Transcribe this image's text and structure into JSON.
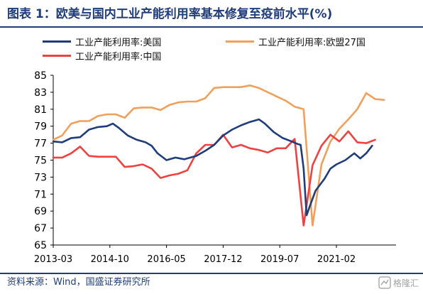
{
  "header": {
    "title": "图表 1：欧美与国内工业产能利用率基本修复至疫前水平(%)"
  },
  "footer": {
    "source": "资料来源：Wind，国盛证券研究所"
  },
  "watermark": {
    "text": "格隆汇"
  },
  "chart_data": {
    "type": "line",
    "ylim": [
      65,
      85
    ],
    "yticks": [
      65,
      67,
      69,
      71,
      73,
      75,
      77,
      79,
      81,
      83,
      85
    ],
    "xlim": [
      "2013-03",
      "2022-10"
    ],
    "xticks": [
      "2013-03",
      "2014-10",
      "2016-05",
      "2017-12",
      "2019-07",
      "2021-02"
    ],
    "grid": false,
    "legend_position": "top",
    "series": [
      {
        "name": "工业产能利用率:美国",
        "color": "#1f3d7a",
        "points": [
          [
            "2013-03",
            77.2
          ],
          [
            "2013-06",
            77.1
          ],
          [
            "2013-09",
            77.6
          ],
          [
            "2013-12",
            77.7
          ],
          [
            "2014-03",
            78.6
          ],
          [
            "2014-06",
            78.9
          ],
          [
            "2014-09",
            79.0
          ],
          [
            "2014-11",
            79.3
          ],
          [
            "2015-01",
            78.8
          ],
          [
            "2015-04",
            77.9
          ],
          [
            "2015-07",
            77.4
          ],
          [
            "2015-10",
            77.1
          ],
          [
            "2015-12",
            76.7
          ],
          [
            "2016-02",
            75.8
          ],
          [
            "2016-05",
            75.0
          ],
          [
            "2016-08",
            75.3
          ],
          [
            "2016-11",
            75.1
          ],
          [
            "2017-03",
            75.5
          ],
          [
            "2017-06",
            76.1
          ],
          [
            "2017-09",
            76.8
          ],
          [
            "2017-12",
            77.9
          ],
          [
            "2018-03",
            78.6
          ],
          [
            "2018-06",
            79.1
          ],
          [
            "2018-09",
            79.5
          ],
          [
            "2018-12",
            79.8
          ],
          [
            "2019-02",
            79.3
          ],
          [
            "2019-05",
            78.3
          ],
          [
            "2019-08",
            77.6
          ],
          [
            "2019-11",
            77.2
          ],
          [
            "2020-01",
            76.9
          ],
          [
            "2020-02",
            76.8
          ],
          [
            "2020-03",
            74.0
          ],
          [
            "2020-04",
            68.5
          ],
          [
            "2020-05",
            69.5
          ],
          [
            "2020-07",
            71.4
          ],
          [
            "2020-10",
            72.8
          ],
          [
            "2020-12",
            74.0
          ],
          [
            "2021-02",
            74.5
          ],
          [
            "2021-05",
            75.0
          ],
          [
            "2021-08",
            75.8
          ],
          [
            "2021-10",
            75.2
          ],
          [
            "2021-12",
            75.8
          ],
          [
            "2022-02",
            76.7
          ]
        ]
      },
      {
        "name": "工业产能利用率:欧盟27国",
        "color": "#f0a05a",
        "points": [
          [
            "2013-03",
            77.4
          ],
          [
            "2013-06",
            77.9
          ],
          [
            "2013-09",
            79.3
          ],
          [
            "2013-12",
            79.6
          ],
          [
            "2014-03",
            79.6
          ],
          [
            "2014-06",
            80.2
          ],
          [
            "2014-09",
            80.4
          ],
          [
            "2014-12",
            80.4
          ],
          [
            "2015-03",
            80.0
          ],
          [
            "2015-06",
            81.1
          ],
          [
            "2015-09",
            81.2
          ],
          [
            "2015-12",
            81.2
          ],
          [
            "2016-03",
            80.9
          ],
          [
            "2016-06",
            81.5
          ],
          [
            "2016-09",
            81.8
          ],
          [
            "2016-12",
            81.9
          ],
          [
            "2017-03",
            81.9
          ],
          [
            "2017-06",
            82.3
          ],
          [
            "2017-09",
            83.5
          ],
          [
            "2017-12",
            83.6
          ],
          [
            "2018-03",
            83.6
          ],
          [
            "2018-06",
            83.6
          ],
          [
            "2018-09",
            83.8
          ],
          [
            "2018-12",
            83.5
          ],
          [
            "2019-03",
            83.0
          ],
          [
            "2019-06",
            82.5
          ],
          [
            "2019-09",
            82.0
          ],
          [
            "2019-12",
            81.3
          ],
          [
            "2020-03",
            81.0
          ],
          [
            "2020-06",
            67.3
          ],
          [
            "2020-09",
            74.5
          ],
          [
            "2020-12",
            77.2
          ],
          [
            "2021-03",
            78.7
          ],
          [
            "2021-06",
            79.8
          ],
          [
            "2021-09",
            81.0
          ],
          [
            "2021-12",
            82.9
          ],
          [
            "2022-03",
            82.2
          ],
          [
            "2022-06",
            82.1
          ]
        ]
      },
      {
        "name": "工业产能利用率:中国",
        "color": "#f04040",
        "points": [
          [
            "2013-03",
            75.3
          ],
          [
            "2013-06",
            75.3
          ],
          [
            "2013-09",
            75.8
          ],
          [
            "2013-12",
            76.6
          ],
          [
            "2014-03",
            75.5
          ],
          [
            "2014-06",
            75.4
          ],
          [
            "2014-09",
            75.4
          ],
          [
            "2014-12",
            75.4
          ],
          [
            "2015-03",
            74.2
          ],
          [
            "2015-06",
            74.3
          ],
          [
            "2015-09",
            74.5
          ],
          [
            "2015-12",
            74.0
          ],
          [
            "2016-03",
            72.9
          ],
          [
            "2016-06",
            73.2
          ],
          [
            "2016-09",
            73.4
          ],
          [
            "2016-12",
            73.8
          ],
          [
            "2017-03",
            75.8
          ],
          [
            "2017-06",
            76.8
          ],
          [
            "2017-09",
            76.8
          ],
          [
            "2017-12",
            78.0
          ],
          [
            "2018-03",
            76.5
          ],
          [
            "2018-06",
            76.8
          ],
          [
            "2018-09",
            76.4
          ],
          [
            "2018-12",
            76.2
          ],
          [
            "2019-03",
            75.9
          ],
          [
            "2019-06",
            76.4
          ],
          [
            "2019-09",
            76.4
          ],
          [
            "2019-12",
            77.5
          ],
          [
            "2020-03",
            67.3
          ],
          [
            "2020-06",
            74.4
          ],
          [
            "2020-09",
            76.7
          ],
          [
            "2020-12",
            78.0
          ],
          [
            "2021-03",
            77.2
          ],
          [
            "2021-06",
            78.4
          ],
          [
            "2021-09",
            77.1
          ],
          [
            "2021-12",
            77.0
          ],
          [
            "2022-03",
            77.4
          ]
        ]
      }
    ]
  }
}
